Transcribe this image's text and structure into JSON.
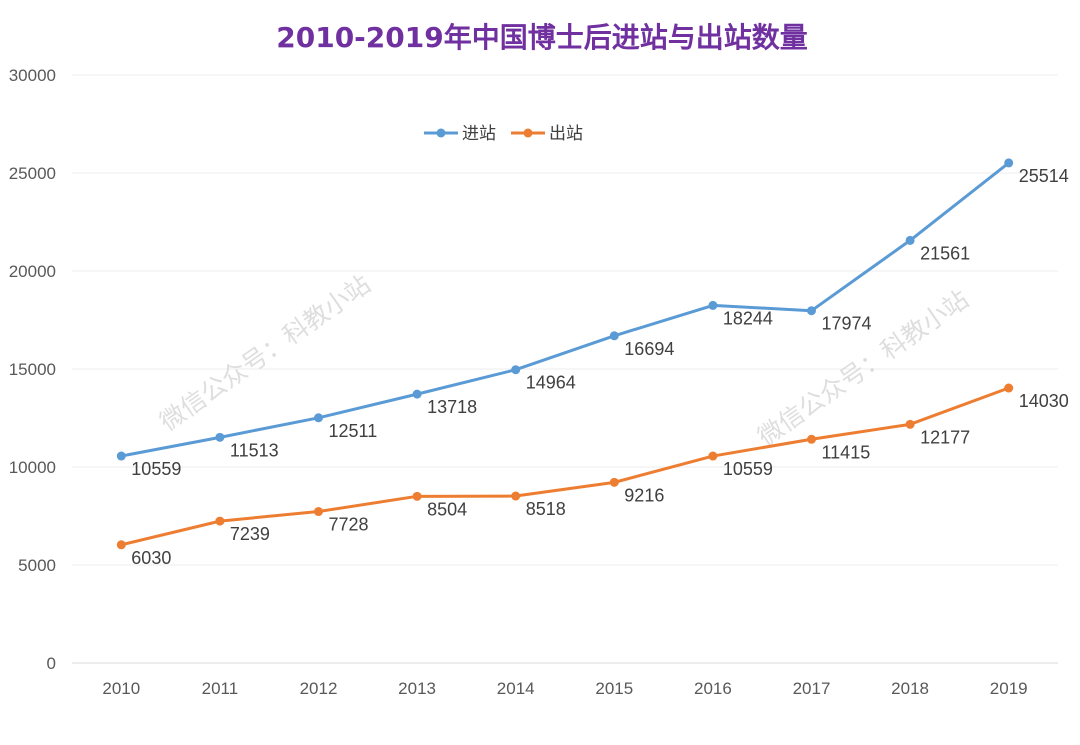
{
  "chart_data": {
    "type": "line",
    "title": "2010-2019年中国博士后进站与出站数量",
    "title_color": "#7030a0",
    "categories": [
      "2010",
      "2011",
      "2012",
      "2013",
      "2014",
      "2015",
      "2016",
      "2017",
      "2018",
      "2019"
    ],
    "series": [
      {
        "name": "进站",
        "color": "#5b9bd5",
        "values": [
          10559,
          11513,
          12511,
          13718,
          14964,
          16694,
          18244,
          17974,
          21561,
          25514
        ]
      },
      {
        "name": "出站",
        "color": "#ed7d31",
        "values": [
          6030,
          7239,
          7728,
          8504,
          8518,
          9216,
          10559,
          11415,
          12177,
          14030
        ]
      }
    ],
    "ylim": [
      0,
      30000
    ],
    "yticks": [
      0,
      5000,
      10000,
      15000,
      20000,
      25000,
      30000
    ],
    "grid": true,
    "legend_position": "top-center",
    "watermarks": [
      "微信公众号：科教小站",
      "微信公众号：科教小站"
    ]
  }
}
